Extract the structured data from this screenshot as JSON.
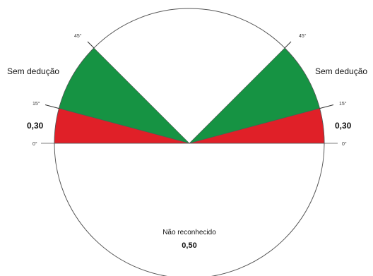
{
  "labels": {
    "left_sem_deducao": "Sem dedução",
    "right_sem_deducao": "Sem dedução",
    "left_value": "0,30",
    "right_value": "0,30",
    "nao_reconhecido": "Não reconhecido",
    "center_value": "0,50"
  },
  "angles": {
    "left_45": "45°",
    "right_45": "45°",
    "left_15": "15°",
    "right_15": "15°",
    "left_0": "0°",
    "right_0": "0°"
  },
  "zones": [
    {
      "name": "Sem dedução",
      "from_deg": 15,
      "to_deg": 45,
      "color": "#169343"
    },
    {
      "name": "0,30",
      "from_deg": 0,
      "to_deg": 15,
      "color": "#e02028"
    },
    {
      "name": "Não reconhecido",
      "color": "#ffffff"
    }
  ],
  "colors": {
    "green": "#169343",
    "red": "#e02028",
    "outline": "#555555"
  }
}
